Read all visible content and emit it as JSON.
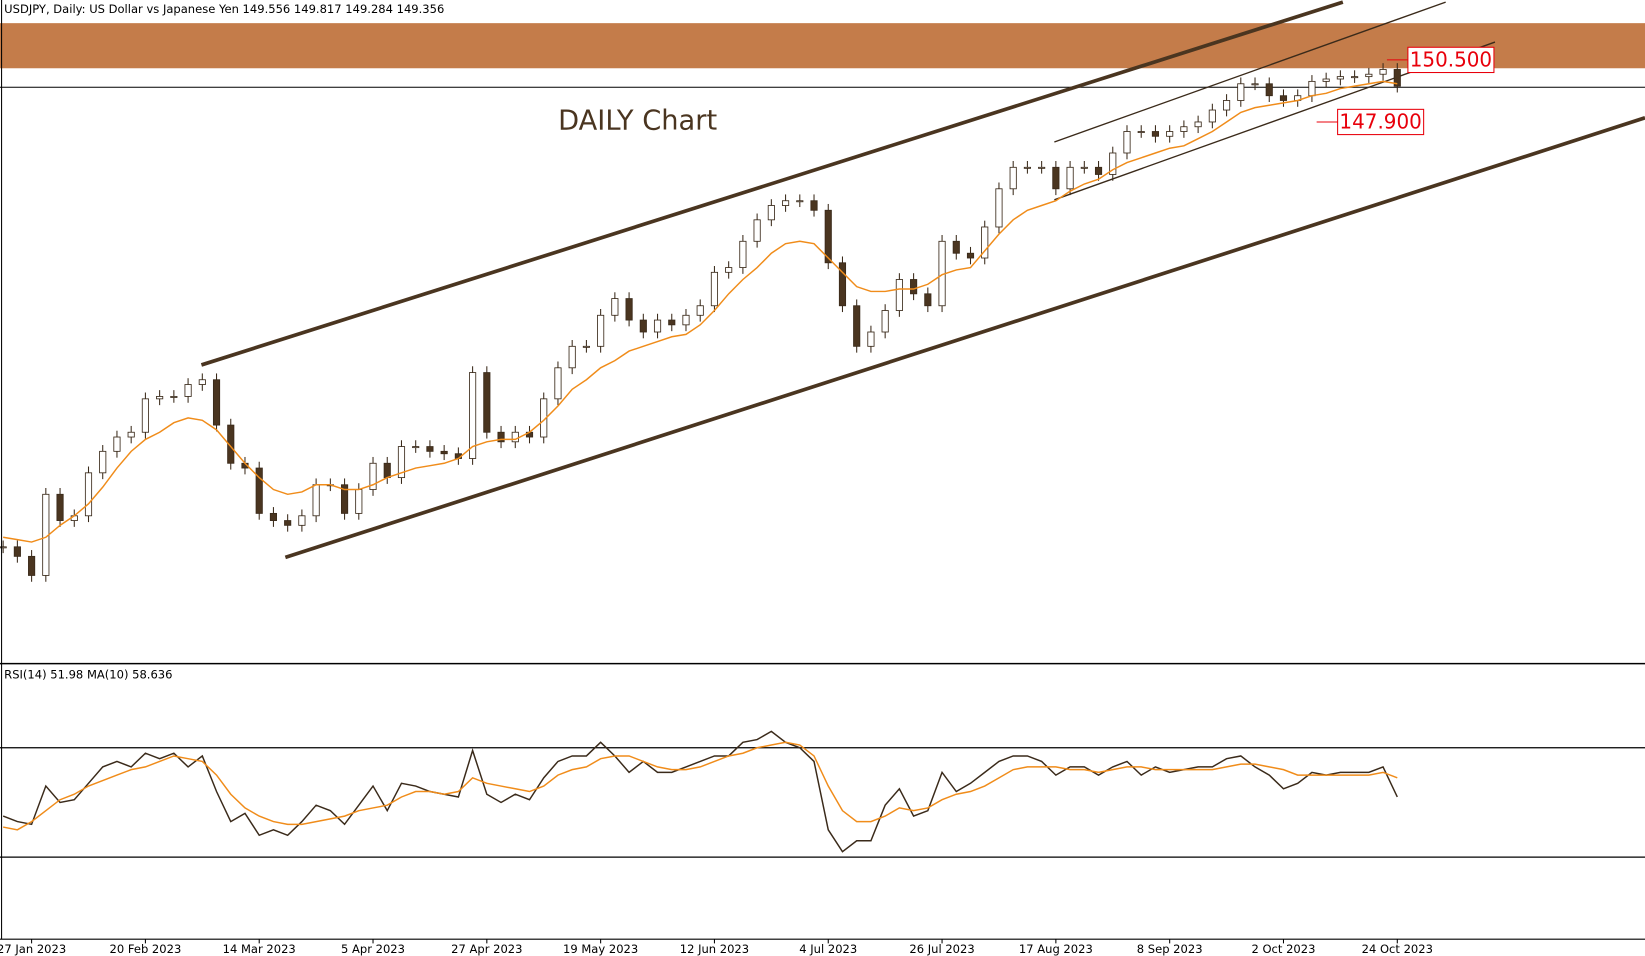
{
  "chart_data": {
    "type": "candlestick",
    "title": "USDJPY, Daily:  US Dollar vs Japanese Yen  149.556 149.817 149.284 149.356",
    "annotation": "DAILY Chart",
    "categories": [
      null,
      null,
      "27 Jan 2023",
      null,
      null,
      null,
      null,
      null,
      null,
      null,
      "20 Feb 2023",
      null,
      null,
      null,
      null,
      null,
      null,
      null,
      "14 Mar 2023",
      null,
      null,
      null,
      null,
      null,
      null,
      null,
      "5 Apr 2023",
      null,
      null,
      null,
      null,
      null,
      null,
      null,
      "27 Apr 2023",
      null,
      null,
      null,
      null,
      null,
      null,
      null,
      "19 May 2023",
      null,
      null,
      null,
      null,
      null,
      null,
      null,
      "12 Jun 2023",
      null,
      null,
      null,
      null,
      null,
      null,
      null,
      "4 Jul 2023",
      null,
      null,
      null,
      null,
      null,
      null,
      null,
      "26 Jul 2023",
      null,
      null,
      null,
      null,
      null,
      null,
      null,
      "17 Aug 2023",
      null,
      null,
      null,
      null,
      null,
      null,
      null,
      "8 Sep 2023",
      null,
      null,
      null,
      null,
      null,
      null,
      null,
      "2 Oct 2023",
      null,
      null,
      null,
      null,
      null,
      null,
      null,
      "24 Oct 2023"
    ],
    "close": [
      130.1,
      129.7,
      128.9,
      132.3,
      131.2,
      131.4,
      133.2,
      134.1,
      134.7,
      134.9,
      136.3,
      136.4,
      136.4,
      136.9,
      137.1,
      135.2,
      133.6,
      133.4,
      131.5,
      131.2,
      131.0,
      131.4,
      132.7,
      132.7,
      131.5,
      132.5,
      133.6,
      133.0,
      134.3,
      134.3,
      134.1,
      134.0,
      133.8,
      137.4,
      134.9,
      134.5,
      134.9,
      134.7,
      136.3,
      137.6,
      138.5,
      138.5,
      139.8,
      140.5,
      139.6,
      139.1,
      139.6,
      139.4,
      139.8,
      140.2,
      141.6,
      141.8,
      142.9,
      143.8,
      144.4,
      144.6,
      144.6,
      144.2,
      142.0,
      140.2,
      138.5,
      139.1,
      140.0,
      141.3,
      140.7,
      140.2,
      142.9,
      142.4,
      142.2,
      143.5,
      145.1,
      146.0,
      146.0,
      146.0,
      145.1,
      146.0,
      146.0,
      145.7,
      146.6,
      147.5,
      147.5,
      147.3,
      147.5,
      147.7,
      147.9,
      148.4,
      148.8,
      149.5,
      149.5,
      149.0,
      148.8,
      149.0,
      149.6,
      149.7,
      149.8,
      149.8,
      149.9,
      150.1,
      149.4
    ],
    "ma": [
      130.5,
      130.4,
      130.3,
      130.5,
      131.0,
      131.4,
      131.9,
      132.6,
      133.4,
      134.1,
      134.6,
      134.9,
      135.3,
      135.5,
      135.4,
      135.0,
      134.3,
      133.6,
      133.0,
      132.5,
      132.3,
      132.4,
      132.7,
      132.7,
      132.5,
      132.5,
      132.7,
      133.0,
      133.2,
      133.4,
      133.5,
      133.6,
      133.8,
      134.3,
      134.5,
      134.6,
      134.6,
      134.9,
      135.4,
      136.0,
      136.7,
      137.1,
      137.6,
      137.9,
      138.3,
      138.5,
      138.7,
      138.9,
      139.0,
      139.4,
      140.0,
      140.7,
      141.3,
      141.8,
      142.4,
      142.8,
      142.9,
      142.8,
      142.2,
      141.6,
      141.0,
      140.8,
      140.8,
      140.9,
      140.9,
      141.1,
      141.5,
      141.7,
      141.8,
      142.5,
      143.2,
      143.8,
      144.2,
      144.4,
      144.6,
      145.0,
      145.3,
      145.5,
      145.9,
      146.2,
      146.4,
      146.6,
      146.8,
      146.9,
      147.2,
      147.5,
      147.9,
      148.3,
      148.5,
      148.6,
      148.7,
      148.8,
      149.0,
      149.1,
      149.3,
      149.4,
      149.5,
      149.6,
      149.5
    ],
    "up_color": "#ffffff",
    "down_color": "#4a3520",
    "candle_stroke": "#3a2a1a",
    "ma_color": "#f08c1a",
    "ylim": [
      125.25,
      153.01
    ],
    "resistance_zone": [
      150.15,
      152.04
    ],
    "zone_color": "#c47c4a",
    "last_price": 149.356,
    "price_labels": [
      {
        "value": 150.5,
        "label": "150.500"
      },
      {
        "value": 147.9,
        "label": "147.900"
      }
    ],
    "rsi_title": "RSI(14) 51.98 MA(10) 58.636",
    "rsi": [
      45,
      43,
      42,
      56,
      50,
      51,
      57,
      63,
      65,
      63,
      68,
      66,
      68,
      63,
      67,
      54,
      43,
      46,
      38,
      40,
      38,
      43,
      49,
      47,
      42,
      49,
      56,
      47,
      57,
      56,
      54,
      53,
      52,
      69,
      53,
      50,
      53,
      51,
      59,
      65,
      67,
      67,
      72,
      67,
      61,
      65,
      61,
      61,
      63,
      65,
      67,
      67,
      72,
      73,
      76,
      72,
      70,
      65,
      40,
      32,
      36,
      36,
      49,
      55,
      45,
      47,
      61,
      54,
      57,
      61,
      65,
      67,
      67,
      65,
      60,
      63,
      63,
      60,
      63,
      65,
      60,
      63,
      61,
      62,
      63,
      63,
      66,
      67,
      63,
      60,
      55,
      57,
      61,
      60,
      61,
      61,
      61,
      63,
      52
    ],
    "rsi_ma": [
      41,
      40,
      43,
      47,
      51,
      53,
      56,
      58,
      60,
      62,
      63,
      65,
      67,
      66,
      65,
      60,
      53,
      48,
      45,
      43,
      42,
      42,
      43,
      44,
      45,
      47,
      48,
      49,
      52,
      54,
      54,
      53,
      54,
      59,
      57,
      56,
      55,
      54,
      56,
      60,
      62,
      63,
      66,
      67,
      67,
      65,
      63,
      62,
      62,
      63,
      65,
      67,
      68,
      70,
      71,
      72,
      71,
      67,
      56,
      47,
      43,
      43,
      45,
      48,
      47,
      48,
      51,
      53,
      54,
      56,
      59,
      62,
      63,
      63,
      63,
      62,
      62,
      61,
      62,
      63,
      63,
      62,
      62,
      62,
      62,
      62,
      63,
      64,
      64,
      63,
      62,
      60,
      60,
      60,
      60,
      60,
      60,
      61,
      59
    ],
    "rsi_color": "#3a2a1a",
    "y2lim": [
      0,
      100
    ],
    "y2ticks": [
      30,
      70
    ]
  }
}
